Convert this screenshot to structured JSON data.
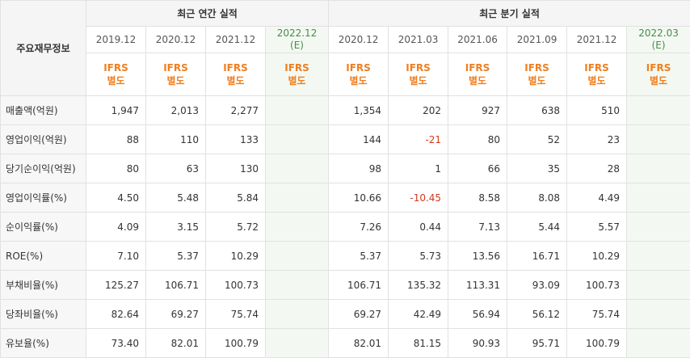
{
  "corner_label": "주요재무정보",
  "annual_title": "최근 연간 실적",
  "quarterly_title": "최근 분기 실적",
  "annual_periods": [
    "2019.12",
    "2020.12",
    "2021.12",
    "2022.12"
  ],
  "annual_est_marker": "(E)",
  "quarterly_periods": [
    "2020.12",
    "2021.03",
    "2021.06",
    "2021.09",
    "2021.12",
    "2022.03"
  ],
  "quarterly_est_marker": "(E)",
  "ifrs_line1": "IFRS",
  "ifrs_line2": "별도",
  "negative_color": "#d23b1d",
  "ifrs_color": "#f07e1f",
  "rows": [
    {
      "label": "매출액(억원)",
      "annual": [
        "1,947",
        "2,013",
        "2,277",
        ""
      ],
      "quarterly": [
        "1,354",
        "202",
        "927",
        "638",
        "510",
        ""
      ]
    },
    {
      "label": "영업이익(억원)",
      "annual": [
        "88",
        "110",
        "133",
        ""
      ],
      "quarterly": [
        "144",
        "-21",
        "80",
        "52",
        "23",
        ""
      ]
    },
    {
      "label": "당기순이익(억원)",
      "annual": [
        "80",
        "63",
        "130",
        ""
      ],
      "quarterly": [
        "98",
        "1",
        "66",
        "35",
        "28",
        ""
      ]
    },
    {
      "label": "영업이익률(%)",
      "annual": [
        "4.50",
        "5.48",
        "5.84",
        ""
      ],
      "quarterly": [
        "10.66",
        "-10.45",
        "8.58",
        "8.08",
        "4.49",
        ""
      ]
    },
    {
      "label": "순이익률(%)",
      "annual": [
        "4.09",
        "3.15",
        "5.72",
        ""
      ],
      "quarterly": [
        "7.26",
        "0.44",
        "7.13",
        "5.44",
        "5.57",
        ""
      ]
    },
    {
      "label": "ROE(%)",
      "annual": [
        "7.10",
        "5.37",
        "10.29",
        ""
      ],
      "quarterly": [
        "5.37",
        "5.73",
        "13.56",
        "16.71",
        "10.29",
        ""
      ]
    },
    {
      "label": "부채비율(%)",
      "annual": [
        "125.27",
        "106.71",
        "100.73",
        ""
      ],
      "quarterly": [
        "106.71",
        "135.32",
        "113.31",
        "93.09",
        "100.73",
        ""
      ]
    },
    {
      "label": "당좌비율(%)",
      "annual": [
        "82.64",
        "69.27",
        "75.74",
        ""
      ],
      "quarterly": [
        "69.27",
        "42.49",
        "56.94",
        "56.12",
        "75.74",
        ""
      ]
    },
    {
      "label": "유보율(%)",
      "annual": [
        "73.40",
        "82.01",
        "100.79",
        ""
      ],
      "quarterly": [
        "82.01",
        "81.15",
        "90.93",
        "95.71",
        "100.79",
        ""
      ]
    }
  ]
}
